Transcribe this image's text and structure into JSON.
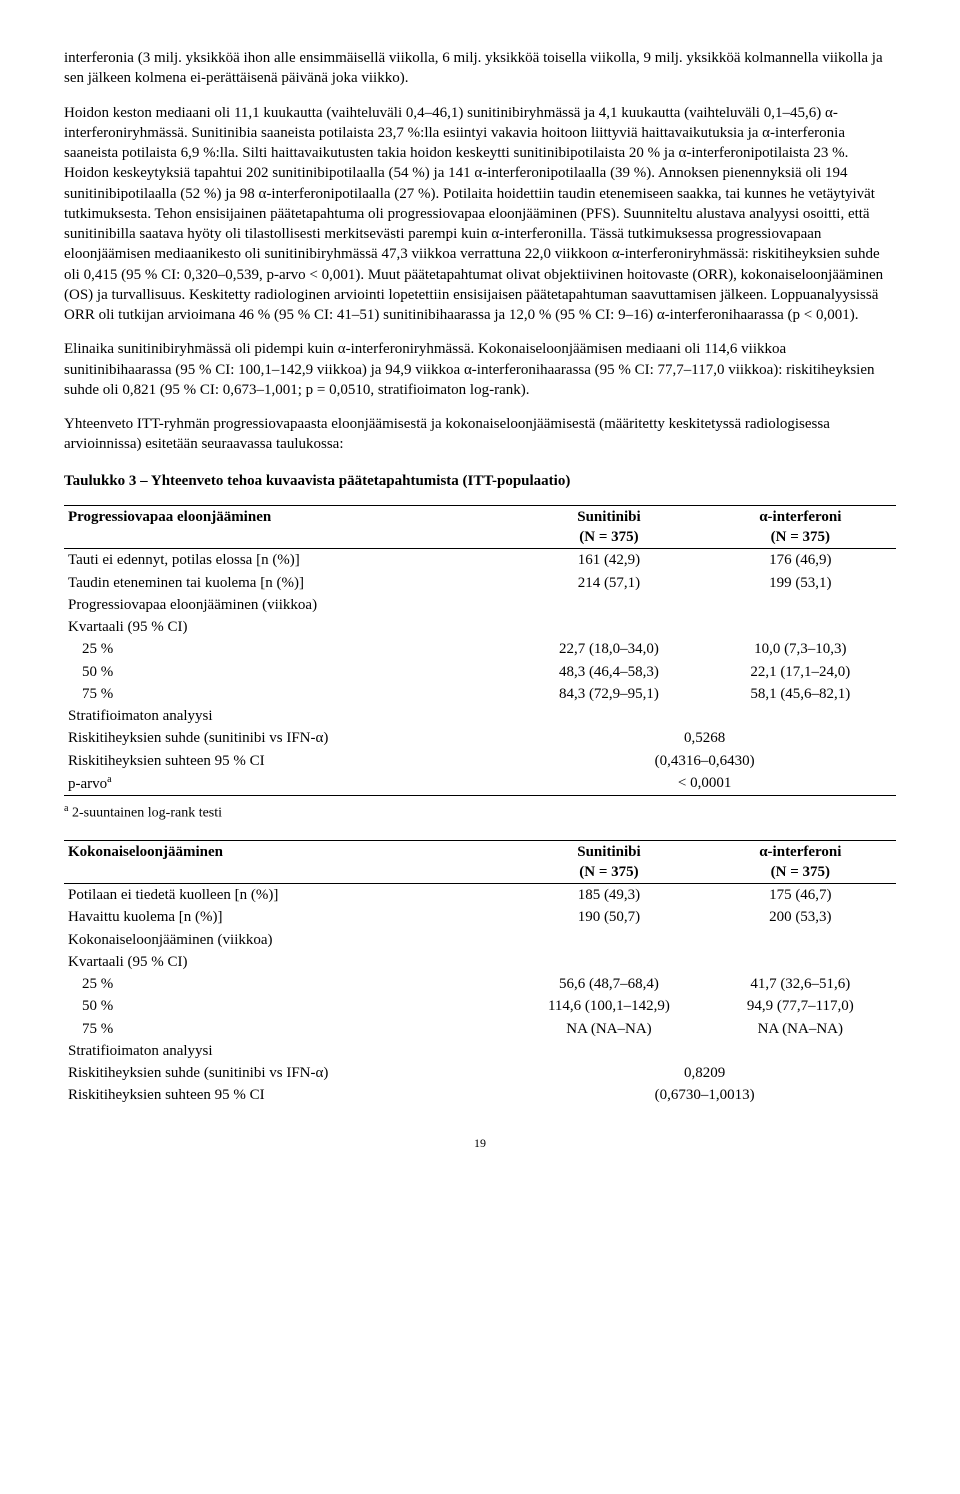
{
  "para1": "interferonia (3 milj. yksikköä ihon alle ensimmäisellä viikolla, 6 milj. yksikköä toisella viikolla, 9 milj. yksikköä kolmannella viikolla ja sen jälkeen kolmena ei-perättäisenä päivänä joka viikko).",
  "para2": "Hoidon keston mediaani oli 11,1 kuukautta (vaihteluväli 0,4–46,1) sunitinibiryhmässä ja 4,1 kuukautta (vaihteluväli 0,1–45,6) α-interferoniryhmässä. Sunitinibia saaneista potilaista 23,7 %:lla esiintyi vakavia hoitoon liittyviä haittavaikutuksia ja α-interferonia saaneista potilaista 6,9 %:lla. Silti haittavaikutusten takia hoidon keskeytti sunitinibipotilaista 20 % ja α-interferonipotilaista 23 %. Hoidon keskeytyksiä tapahtui 202 sunitinibipotilaalla (54 %) ja 141 α-interferonipotilaalla (39 %). Annoksen pienennyksiä oli 194 sunitinibipotilaalla (52 %) ja 98 α-interferonipotilaalla (27 %). Potilaita hoidettiin taudin etenemiseen saakka, tai kunnes he vetäytyivät tutkimuksesta. Tehon ensisijainen päätetapahtuma oli progressiovapaa eloonjääminen (PFS). Suunniteltu alustava analyysi osoitti, että sunitinibilla saatava hyöty oli tilastollisesti merkitsevästi parempi kuin α-interferonilla. Tässä tutkimuksessa progressiovapaan eloonjäämisen mediaanikesto oli sunitinibiryhmässä 47,3 viikkoa verrattuna 22,0 viikkoon α-interferoniryhmässä: riskitiheyksien suhde oli 0,415 (95 % CI: 0,320–0,539, p-arvo < 0,001). Muut päätetapahtumat olivat objektiivinen hoitovaste (ORR), kokonaiseloonjääminen (OS) ja turvallisuus. Keskitetty radiologinen arviointi lopetettiin ensisijaisen päätetapahtuman saavuttamisen jälkeen. Loppuanalyysissä ORR oli tutkijan arvioimana 46 % (95 % CI: 41–51) sunitinibihaarassa ja 12,0 % (95 % CI: 9–16) α-interferonihaarassa (p < 0,001).",
  "para3": "Elinaika sunitinibiryhmässä oli pidempi kuin α-interferoniryhmässä. Kokonaiseloonjäämisen mediaani oli 114,6 viikkoa sunitinibihaarassa (95 % CI: 100,1–142,9 viikkoa) ja 94,9 viikkoa α-interferonihaarassa (95 % CI: 77,7–117,0 viikkoa): riskitiheyksien suhde oli 0,821 (95 % CI: 0,673–1,001; p = 0,0510, stratifioimaton log-rank).",
  "para4": "Yhteenveto ITT-ryhmän progressiovapaasta eloonjäämisestä ja kokonaiseloonjäämisestä (määritetty keskitetyssä radiologisessa arvioinnissa) esitetään seuraavassa taulukossa:",
  "table_title": "Taulukko 3 – Yhteenveto tehoa kuvaavista päätetapahtumista (ITT-populaatio)",
  "t1": {
    "h1": "Progressiovapaa eloonjääminen",
    "h2a": "Sunitinibi",
    "h2b": "(N = 375)",
    "h3a": "α-interferoni",
    "h3b": "(N = 375)",
    "r1c1": "Tauti ei edennyt, potilas elossa [n (%)]",
    "r1c2": "161 (42,9)",
    "r1c3": "176 (46,9)",
    "r2c1": "Taudin eteneminen tai kuolema [n (%)]",
    "r2c2": "214 (57,1)",
    "r2c3": "199 (53,1)",
    "r3c1": "Progressiovapaa eloonjääminen (viikkoa)",
    "r4c1": "Kvartaali (95 % CI)",
    "r5c1": "25 %",
    "r5c2": "22,7 (18,0–34,0)",
    "r5c3": "10,0 (7,3–10,3)",
    "r6c1": "50 %",
    "r6c2": "48,3 (46,4–58,3)",
    "r6c3": "22,1 (17,1–24,0)",
    "r7c1": "75 %",
    "r7c2": "84,3 (72,9–95,1)",
    "r7c3": "58,1 (45,6–82,1)",
    "r8c1": "Stratifioimaton analyysi",
    "r9c1": "Riskitiheyksien suhde (sunitinibi vs IFN-α)",
    "r9c23": "0,5268",
    "r10c1": "Riskitiheyksien suhteen 95 % CI",
    "r10c23": "(0,4316–0,6430)",
    "r11c1": "p-arvo",
    "r11sup": "a",
    "r11c23": "< 0,0001"
  },
  "footnote1_sup": "a",
  "footnote1": " 2-suuntainen log-rank testi",
  "t2": {
    "h1": "Kokonaiseloonjääminen",
    "h2a": "Sunitinibi",
    "h2b": "(N = 375)",
    "h3a": "α-interferoni",
    "h3b": "(N = 375)",
    "r1c1": "Potilaan ei tiedetä kuolleen [n (%)]",
    "r1c2": "185 (49,3)",
    "r1c3": "175 (46,7)",
    "r2c1": "Havaittu kuolema [n (%)]",
    "r2c2": "190 (50,7)",
    "r2c3": "200 (53,3)",
    "r3c1": "Kokonaiseloonjääminen (viikkoa)",
    "r4c1": "Kvartaali (95 % CI)",
    "r5c1": "25 %",
    "r5c2": "56,6 (48,7–68,4)",
    "r5c3": "41,7 (32,6–51,6)",
    "r6c1": "50 %",
    "r6c2": "114,6 (100,1–142,9)",
    "r6c3": "94,9 (77,7–117,0)",
    "r7c1": "75 %",
    "r7c2": "NA (NA–NA)",
    "r7c3": "NA (NA–NA)",
    "r8c1": "Stratifioimaton analyysi",
    "r9c1": "Riskitiheyksien suhde (sunitinibi vs IFN-α)",
    "r9c23": "0,8209",
    "r10c1": "Riskitiheyksien suhteen 95 % CI",
    "r10c23": "(0,6730–1,0013)"
  },
  "page_number": "19"
}
